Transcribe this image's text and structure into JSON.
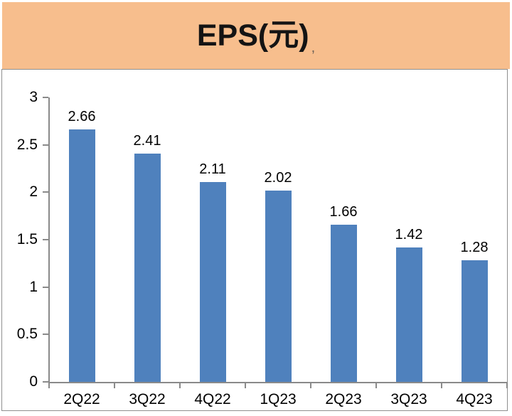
{
  "header": {
    "title": "EPS(元)",
    "title_suffix": ","
  },
  "chart_data": {
    "type": "bar",
    "title": "EPS(元)",
    "categories": [
      "2Q22",
      "3Q22",
      "4Q22",
      "1Q23",
      "2Q23",
      "3Q23",
      "4Q23"
    ],
    "series": [
      {
        "name": "EPS",
        "values": [
          2.66,
          2.41,
          2.11,
          2.02,
          1.66,
          1.42,
          1.28
        ]
      }
    ],
    "values": [
      2.66,
      2.41,
      2.11,
      2.02,
      1.66,
      1.42,
      1.28
    ],
    "data_labels": [
      "2.66",
      "2.41",
      "2.11",
      "2.02",
      "1.66",
      "1.42",
      "1.28"
    ],
    "xlabel": "",
    "ylabel": "",
    "ylim": [
      0,
      3
    ],
    "ytick_interval": 0.5,
    "ytick_labels": [
      "0",
      "0.5",
      "1",
      "1.5",
      "2",
      "2.5",
      "3"
    ],
    "grid": false,
    "legend_position": "none",
    "colors": {
      "bar": "#4F81BD",
      "header_background": "#F7BE8D",
      "axis": "#8A8A8A",
      "plot_background": "#FFFFFF",
      "label_text": "#000000"
    }
  }
}
